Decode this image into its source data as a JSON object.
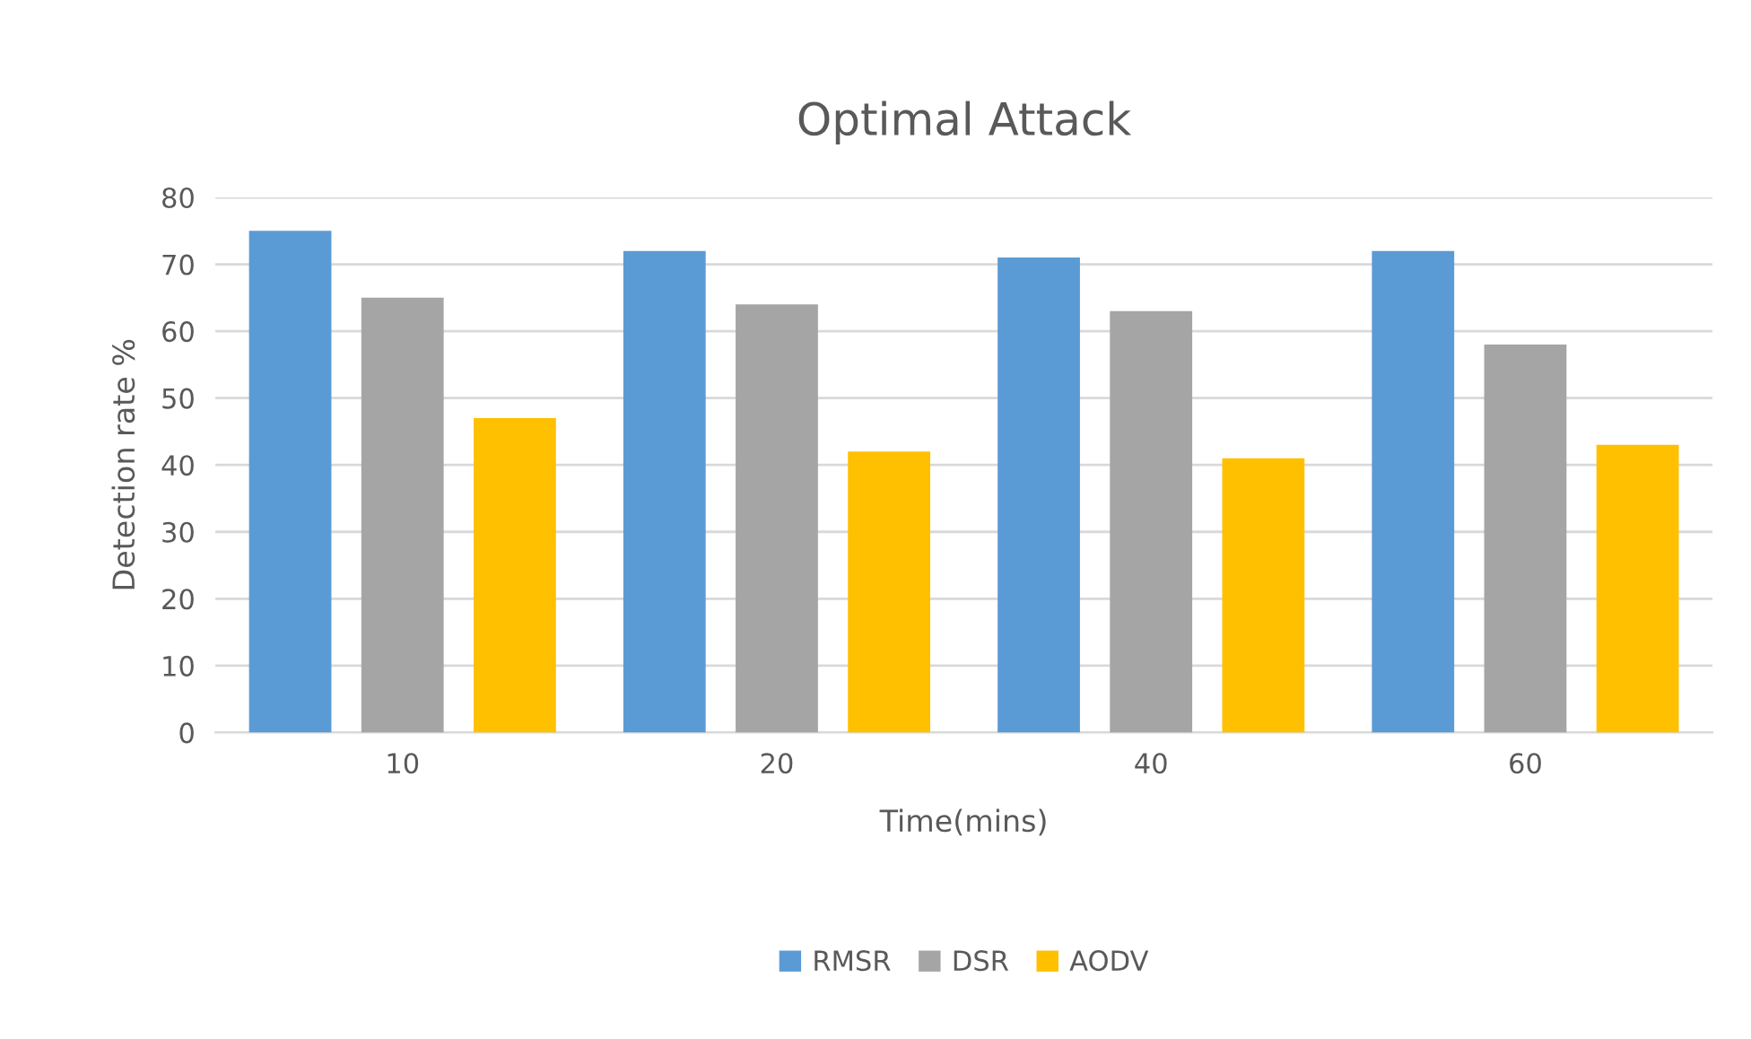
{
  "chart_data": {
    "type": "bar",
    "title": "Optimal Attack",
    "xlabel": "Time(mins)",
    "ylabel": "Detection rate %",
    "categories": [
      "10",
      "20",
      "40",
      "60"
    ],
    "series": [
      {
        "name": "RMSR",
        "color": "#5b9bd5",
        "values": [
          75,
          72,
          71,
          72
        ]
      },
      {
        "name": "DSR",
        "color": "#a5a5a5",
        "values": [
          65,
          64,
          63,
          58
        ]
      },
      {
        "name": "AODV",
        "color": "#ffc000",
        "values": [
          47,
          42,
          41,
          43
        ]
      }
    ],
    "ylim": [
      0,
      80
    ],
    "yticks": [
      0,
      10,
      20,
      30,
      40,
      50,
      60,
      70,
      80
    ],
    "grid": "y",
    "legend": "bottom"
  }
}
